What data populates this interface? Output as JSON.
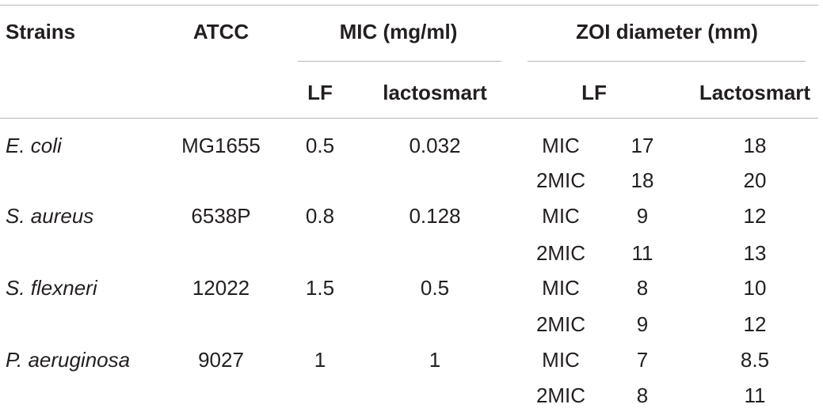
{
  "table": {
    "headers": {
      "strains": "Strains",
      "atcc": "ATCC",
      "mic_group": "MIC (mg/ml)",
      "zoi_group": "ZOI diameter (mm)",
      "mic_lf": "LF",
      "mic_lactosmart": "lactosmart",
      "zoi_lf": "LF",
      "zoi_lactosmart": "Lactosmart"
    },
    "rows": [
      {
        "strain": "E. coli",
        "atcc": "MG1655",
        "mic_lf": "0.5",
        "mic_lactosmart": "0.032",
        "zoi": [
          {
            "condition": "MIC",
            "lf": "17",
            "lactosmart": "18"
          },
          {
            "condition": "2MIC",
            "lf": "18",
            "lactosmart": "20"
          }
        ]
      },
      {
        "strain": "S. aureus",
        "atcc": "6538P",
        "mic_lf": "0.8",
        "mic_lactosmart": "0.128",
        "zoi": [
          {
            "condition": "MIC",
            "lf": "9",
            "lactosmart": "12"
          },
          {
            "condition": "2MIC",
            "lf": "11",
            "lactosmart": "13"
          }
        ]
      },
      {
        "strain": "S. flexneri",
        "atcc": "12022",
        "mic_lf": "1.5",
        "mic_lactosmart": "0.5",
        "zoi": [
          {
            "condition": "MIC",
            "lf": "8",
            "lactosmart": "10"
          },
          {
            "condition": "2MIC",
            "lf": "9",
            "lactosmart": "12"
          }
        ]
      },
      {
        "strain": "P. aeruginosa",
        "atcc": "9027",
        "mic_lf": "1",
        "mic_lactosmart": "1",
        "zoi": [
          {
            "condition": "MIC",
            "lf": "7",
            "lactosmart": "8.5"
          },
          {
            "condition": "2MIC",
            "lf": "8",
            "lactosmart": "11"
          }
        ]
      }
    ]
  }
}
